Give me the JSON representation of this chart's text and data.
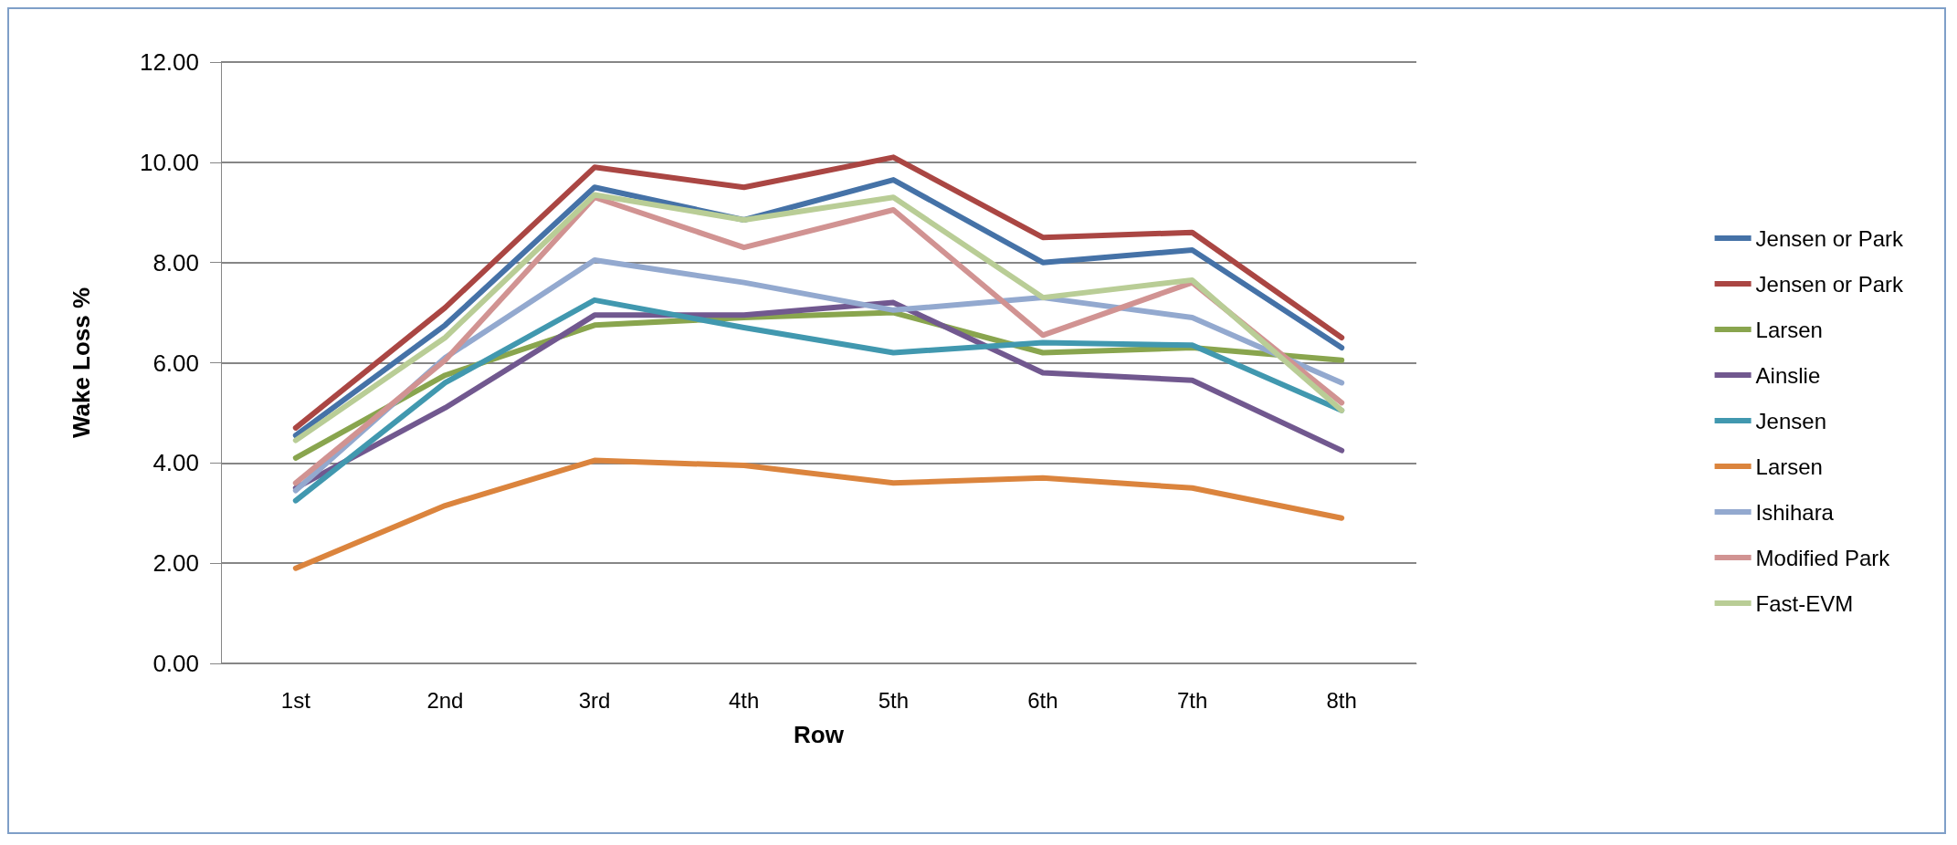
{
  "chart_data": {
    "type": "line",
    "xlabel": "Row",
    "ylabel": "Wake Loss %",
    "categories": [
      "1st",
      "2nd",
      "3rd",
      "4th",
      "5th",
      "6th",
      "7th",
      "8th"
    ],
    "series": [
      {
        "name": "Jensen or Park",
        "color": "#4572a7",
        "values": [
          4.55,
          6.75,
          9.5,
          8.85,
          9.65,
          8.0,
          8.25,
          6.3
        ]
      },
      {
        "name": "Jensen or Park",
        "color": "#aa4643",
        "values": [
          4.7,
          7.1,
          9.9,
          9.5,
          10.1,
          8.5,
          8.6,
          6.5
        ]
      },
      {
        "name": "Larsen",
        "color": "#89a54e",
        "values": [
          4.1,
          5.75,
          6.75,
          6.9,
          7.0,
          6.2,
          6.3,
          6.05
        ]
      },
      {
        "name": "Ainslie",
        "color": "#71588f",
        "values": [
          3.5,
          5.1,
          6.95,
          6.95,
          7.2,
          5.8,
          5.65,
          4.25
        ]
      },
      {
        "name": "Jensen",
        "color": "#4198af",
        "values": [
          3.25,
          5.6,
          7.25,
          6.7,
          6.2,
          6.4,
          6.35,
          5.05
        ]
      },
      {
        "name": "Larsen",
        "color": "#db843d",
        "values": [
          1.9,
          3.15,
          4.05,
          3.95,
          3.6,
          3.7,
          3.5,
          2.9
        ]
      },
      {
        "name": "Ishihara",
        "color": "#93a9cf",
        "values": [
          3.45,
          6.1,
          8.05,
          7.6,
          7.05,
          7.3,
          6.9,
          5.6
        ]
      },
      {
        "name": "Modified Park",
        "color": "#d19392",
        "values": [
          3.6,
          6.05,
          9.3,
          8.3,
          9.05,
          6.55,
          7.6,
          5.2
        ]
      },
      {
        "name": "Fast-EVM",
        "color": "#b9cd96",
        "values": [
          4.45,
          6.5,
          9.35,
          8.85,
          9.3,
          7.3,
          7.65,
          5.05
        ]
      }
    ],
    "ylim": [
      0,
      12
    ],
    "yticks": [
      {
        "value": 0,
        "label": "0.00"
      },
      {
        "value": 2,
        "label": "2.00"
      },
      {
        "value": 4,
        "label": "4.00"
      },
      {
        "value": 6,
        "label": "6.00"
      },
      {
        "value": 8,
        "label": "8.00"
      },
      {
        "value": 10,
        "label": "10.00"
      },
      {
        "value": 12,
        "label": "12.00"
      }
    ],
    "grid": "y",
    "legend": "right",
    "marker": "none",
    "line_style": "solid"
  }
}
